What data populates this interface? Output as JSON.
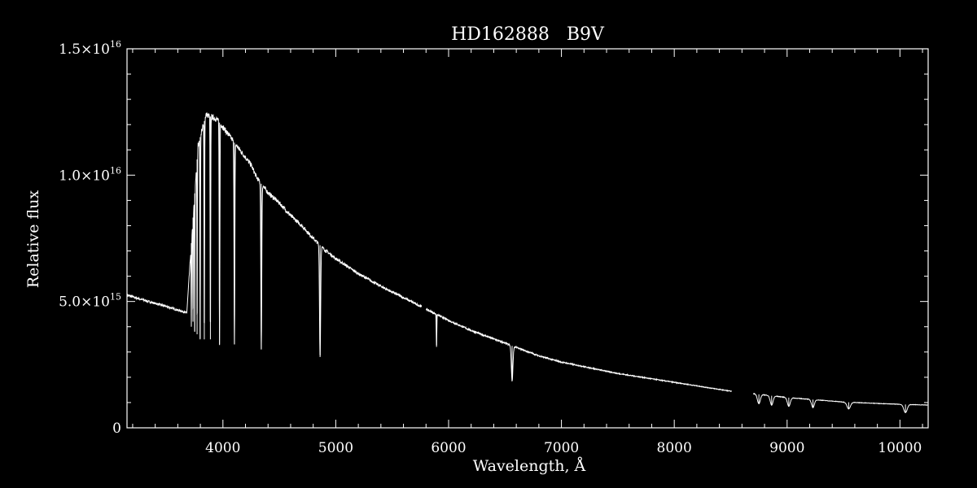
{
  "chart_data": {
    "type": "line",
    "title": "HD162888   B9V",
    "xlabel": "Wavelength, Å",
    "ylabel": "Relative flux",
    "xlim": [
      3150,
      10250
    ],
    "ylim": [
      0,
      1.5e+16
    ],
    "x_ticks": [
      {
        "value": 4000,
        "label": "4000"
      },
      {
        "value": 5000,
        "label": "5000"
      },
      {
        "value": 6000,
        "label": "6000"
      },
      {
        "value": 7000,
        "label": "7000"
      },
      {
        "value": 8000,
        "label": "8000"
      },
      {
        "value": 9000,
        "label": "9000"
      },
      {
        "value": 10000,
        "label": "10000"
      }
    ],
    "y_ticks": [
      {
        "value": 0,
        "label": "0",
        "exp": ""
      },
      {
        "value": 5000000000000000.0,
        "label": "5.0×10",
        "exp": "15"
      },
      {
        "value": 1e+16,
        "label": "1.0×10",
        "exp": "16"
      },
      {
        "value": 1.5e+16,
        "label": "1.5×10",
        "exp": "16"
      }
    ],
    "x_minor_step": 200,
    "y_minor_step": 1000000000000000.0,
    "grid": false,
    "colors": {
      "background": "#000000",
      "foreground": "#ffffff"
    },
    "series": [
      {
        "continuum": [
          [
            3150,
            5250000000000000.0
          ],
          [
            3300,
            5050000000000000.0
          ],
          [
            3500,
            4800000000000000.0
          ],
          [
            3680,
            4550000000000000.0
          ],
          [
            3730,
            8000000000000000.0
          ],
          [
            3780,
            1.12e+16
          ],
          [
            3850,
            1.24e+16
          ],
          [
            3950,
            1.22e+16
          ],
          [
            4050,
            1.16e+16
          ],
          [
            4150,
            1.1e+16
          ],
          [
            4250,
            1.04e+16
          ],
          [
            4300,
            9900000000000000.0
          ],
          [
            4400,
            9300000000000000.0
          ],
          [
            4500,
            8900000000000000.0
          ],
          [
            4600,
            8400000000000000.0
          ],
          [
            4700,
            8000000000000000.0
          ],
          [
            4800,
            7500000000000000.0
          ],
          [
            4900,
            7050000000000000.0
          ],
          [
            5000,
            6700000000000000.0
          ],
          [
            5200,
            6100000000000000.0
          ],
          [
            5400,
            5600000000000000.0
          ],
          [
            5600,
            5150000000000000.0
          ],
          [
            5800,
            4700000000000000.0
          ],
          [
            6000,
            4250000000000000.0
          ],
          [
            6200,
            3850000000000000.0
          ],
          [
            6500,
            3350000000000000.0
          ],
          [
            6800,
            2850000000000000.0
          ],
          [
            7000,
            2600000000000000.0
          ],
          [
            7500,
            2150000000000000.0
          ],
          [
            8000,
            1800000000000000.0
          ],
          [
            8500,
            1450000000000000.0
          ],
          [
            8700,
            1350000000000000.0
          ],
          [
            9000,
            1200000000000000.0
          ],
          [
            9500,
            1020000000000000.0
          ],
          [
            10000,
            930000000000000.0
          ],
          [
            10250,
            900000000000000.0
          ]
        ],
        "segments": [
          [
            3150,
            5760
          ],
          [
            5800,
            8510
          ],
          [
            8700,
            10250
          ]
        ],
        "absorption_lines": [
          {
            "x": 3720,
            "y": 4000000000000000.0,
            "w": 4
          },
          {
            "x": 3735,
            "y": 4200000000000000.0,
            "w": 4
          },
          {
            "x": 3750,
            "y": 3800000000000000.0,
            "w": 4
          },
          {
            "x": 3771,
            "y": 3700000000000000.0,
            "w": 4
          },
          {
            "x": 3798,
            "y": 3500000000000000.0,
            "w": 5
          },
          {
            "x": 3835,
            "y": 3500000000000000.0,
            "w": 5
          },
          {
            "x": 3889,
            "y": 3500000000000000.0,
            "w": 5
          },
          {
            "x": 3970,
            "y": 3300000000000000.0,
            "w": 6
          },
          {
            "x": 4102,
            "y": 3300000000000000.0,
            "w": 7
          },
          {
            "x": 4340,
            "y": 3100000000000000.0,
            "w": 8
          },
          {
            "x": 4861,
            "y": 2800000000000000.0,
            "w": 10
          },
          {
            "x": 5893,
            "y": 3200000000000000.0,
            "w": 5
          },
          {
            "x": 6563,
            "y": 1850000000000000.0,
            "w": 14
          },
          {
            "x": 8750,
            "y": 950000000000000.0,
            "w": 25
          },
          {
            "x": 8863,
            "y": 900000000000000.0,
            "w": 25
          },
          {
            "x": 9015,
            "y": 850000000000000.0,
            "w": 25
          },
          {
            "x": 9229,
            "y": 800000000000000.0,
            "w": 25
          },
          {
            "x": 9546,
            "y": 750000000000000.0,
            "w": 30
          },
          {
            "x": 10049,
            "y": 600000000000000.0,
            "w": 30
          }
        ]
      }
    ]
  }
}
